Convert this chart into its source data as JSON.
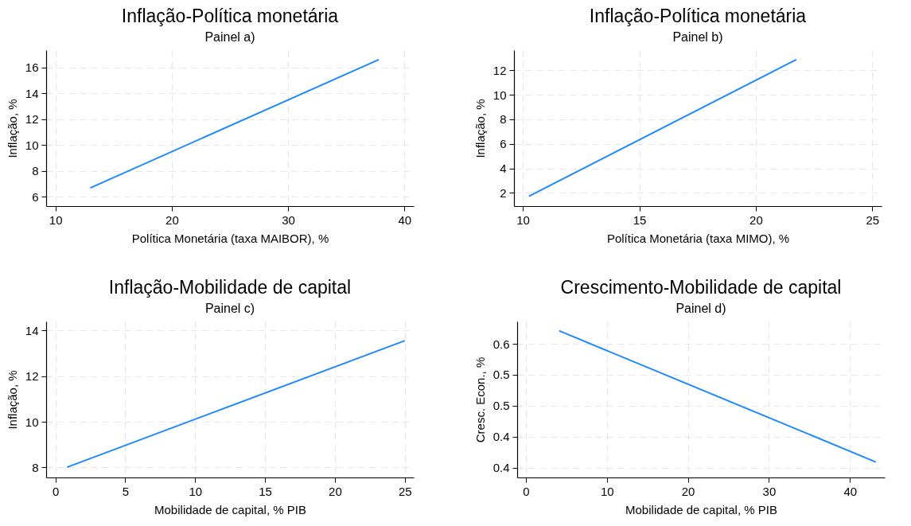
{
  "chart_data": [
    {
      "type": "line",
      "title": "Inflação-Política monetária",
      "subtitle": "Painel a)",
      "xlabel": "Política Monetária (taxa MAIBOR), %",
      "ylabel": "Inflação, %",
      "x": [
        13.0,
        37.8
      ],
      "series": [
        {
          "color": "#1e88ff",
          "values": [
            6.68,
            16.61
          ]
        }
      ],
      "xlim": [
        9.2,
        40.8
      ],
      "xticks": [
        10,
        20,
        30,
        40
      ],
      "ylim": [
        5.27,
        17.34
      ],
      "yticks": [
        6,
        8,
        10,
        12,
        14,
        16
      ],
      "grid": true
    },
    {
      "type": "line",
      "title": "Inflação-Política monetária",
      "subtitle": "Painel b)",
      "xlabel": "Política Monetária (taxa MIMO), %",
      "ylabel": "Inflação, %",
      "x": [
        10.26,
        21.74
      ],
      "series": [
        {
          "color": "#1e88ff",
          "values": [
            1.73,
            12.87
          ]
        }
      ],
      "xlim": [
        9.62,
        25.4
      ],
      "xticks": [
        10,
        15,
        20,
        25
      ],
      "ylim": [
        0.93,
        13.64
      ],
      "yticks": [
        2,
        4,
        6,
        8,
        10,
        12
      ],
      "grid": true
    },
    {
      "type": "line",
      "title": "Inflação-Mobilidade de capital",
      "subtitle": "Painel c)",
      "xlabel": "Mobilidade de capital, % PIB",
      "ylabel": "Inflação, %",
      "x": [
        0.84,
        25.0
      ],
      "series": [
        {
          "color": "#1e88ff",
          "values": [
            8.01,
            13.56
          ]
        }
      ],
      "xlim": [
        -0.66,
        25.64
      ],
      "xticks": [
        0,
        5,
        10,
        15,
        20,
        25
      ],
      "ylim": [
        7.56,
        14.4
      ],
      "yticks": [
        8,
        10,
        12,
        14
      ],
      "grid": true
    },
    {
      "type": "line",
      "title": "Crescimento-Mobilidade de capital",
      "subtitle": "Painel d)",
      "xlabel": "Mobilidade de capital, % PIB",
      "ylabel": "Cresc. Econ., %",
      "x": [
        4.1,
        43.2
      ],
      "series": [
        {
          "color": "#1e88ff",
          "values": [
            0.621,
            0.409
          ]
        }
      ],
      "xlim": [
        -1.08,
        44.3
      ],
      "xticks": [
        0,
        10,
        20,
        30,
        40
      ],
      "ylim": [
        0.384,
        0.636
      ],
      "yticks": [
        {
          "value": 0.4,
          "label": "0.4"
        },
        {
          "value": 0.45,
          "label": "0.4"
        },
        {
          "value": 0.5,
          "label": "0.5"
        },
        {
          "value": 0.55,
          "label": "0.5"
        },
        {
          "value": 0.6,
          "label": "0.6"
        }
      ],
      "grid": true
    }
  ]
}
